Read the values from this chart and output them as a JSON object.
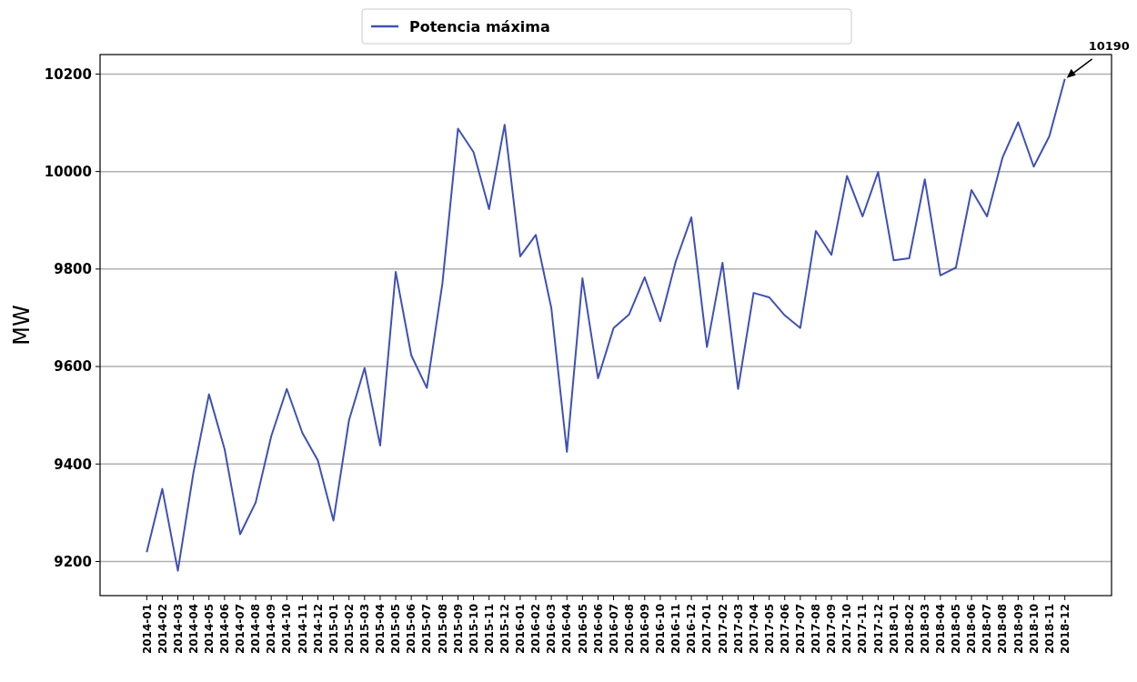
{
  "chart_data": {
    "type": "line",
    "ylabel": "MW",
    "categories": [
      "2014-01",
      "2014-02",
      "2014-03",
      "2014-04",
      "2014-05",
      "2014-06",
      "2014-07",
      "2014-08",
      "2014-09",
      "2014-10",
      "2014-11",
      "2014-12",
      "2015-01",
      "2015-02",
      "2015-03",
      "2015-04",
      "2015-05",
      "2015-06",
      "2015-07",
      "2015-08",
      "2015-09",
      "2015-10",
      "2015-11",
      "2015-12",
      "2016-01",
      "2016-02",
      "2016-03",
      "2016-04",
      "2016-05",
      "2016-06",
      "2016-07",
      "2016-08",
      "2016-09",
      "2016-10",
      "2016-11",
      "2016-12",
      "2017-01",
      "2017-02",
      "2017-03",
      "2017-04",
      "2017-05",
      "2017-06",
      "2017-07",
      "2017-08",
      "2017-09",
      "2017-10",
      "2017-11",
      "2017-12",
      "2018-01",
      "2018-02",
      "2018-03",
      "2018-04",
      "2018-05",
      "2018-06",
      "2018-07",
      "2018-08",
      "2018-09",
      "2018-10",
      "2018-11",
      "2018-12"
    ],
    "series": [
      {
        "name": "Potencia máxima",
        "color": "#3f51b5",
        "values": [
          9219,
          9349,
          9181,
          9382,
          9543,
          9431,
          9256,
          9321,
          9457,
          9554,
          9464,
          9407,
          9284,
          9490,
          9597,
          9438,
          9794,
          9623,
          9556,
          9770,
          10088,
          10040,
          9923,
          10096,
          9826,
          9870,
          9720,
          9425,
          9781,
          9576,
          9679,
          9707,
          9783,
          9693,
          9816,
          9906,
          9640,
          9813,
          9554,
          9751,
          9742,
          9705,
          9679,
          9878,
          9829,
          9991,
          9908,
          9999,
          9818,
          9822,
          9984,
          9787,
          9803,
          9962,
          9908,
          10029,
          10101,
          10010,
          10072,
          10190
        ]
      }
    ],
    "ylim": [
      9130,
      10240
    ],
    "yticks": [
      9200,
      9400,
      9600,
      9800,
      10000,
      10200
    ],
    "grid": "y",
    "legend": "top",
    "annotations": [
      {
        "text": "10190",
        "x": "2018-12",
        "y": 10190
      }
    ]
  }
}
